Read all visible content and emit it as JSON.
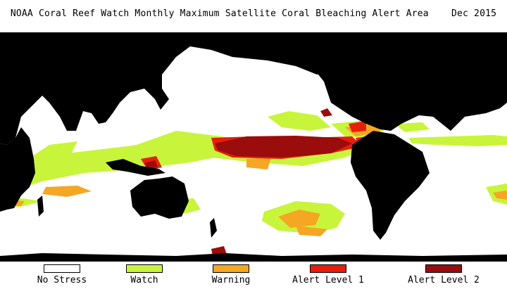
{
  "title": "NOAA Coral Reef Watch Monthly Maximum Satellite Coral Bleaching Alert Area",
  "date": "Dec 2015",
  "colors": {
    "land": "#000000",
    "no_stress": "#ffffff",
    "watch": "#c8f53c",
    "warning": "#f5a623",
    "alert_level_1": "#e81e0c",
    "alert_level_2": "#9b0c0c"
  },
  "legend": [
    {
      "label": "No Stress",
      "color": "#ffffff"
    },
    {
      "label": "Watch",
      "color": "#c8f53c"
    },
    {
      "label": "Warning",
      "color": "#f5a623"
    },
    {
      "label": "Alert Level 1",
      "color": "#e81e0c"
    },
    {
      "label": "Alert Level 2",
      "color": "#9b0c0c"
    }
  ]
}
